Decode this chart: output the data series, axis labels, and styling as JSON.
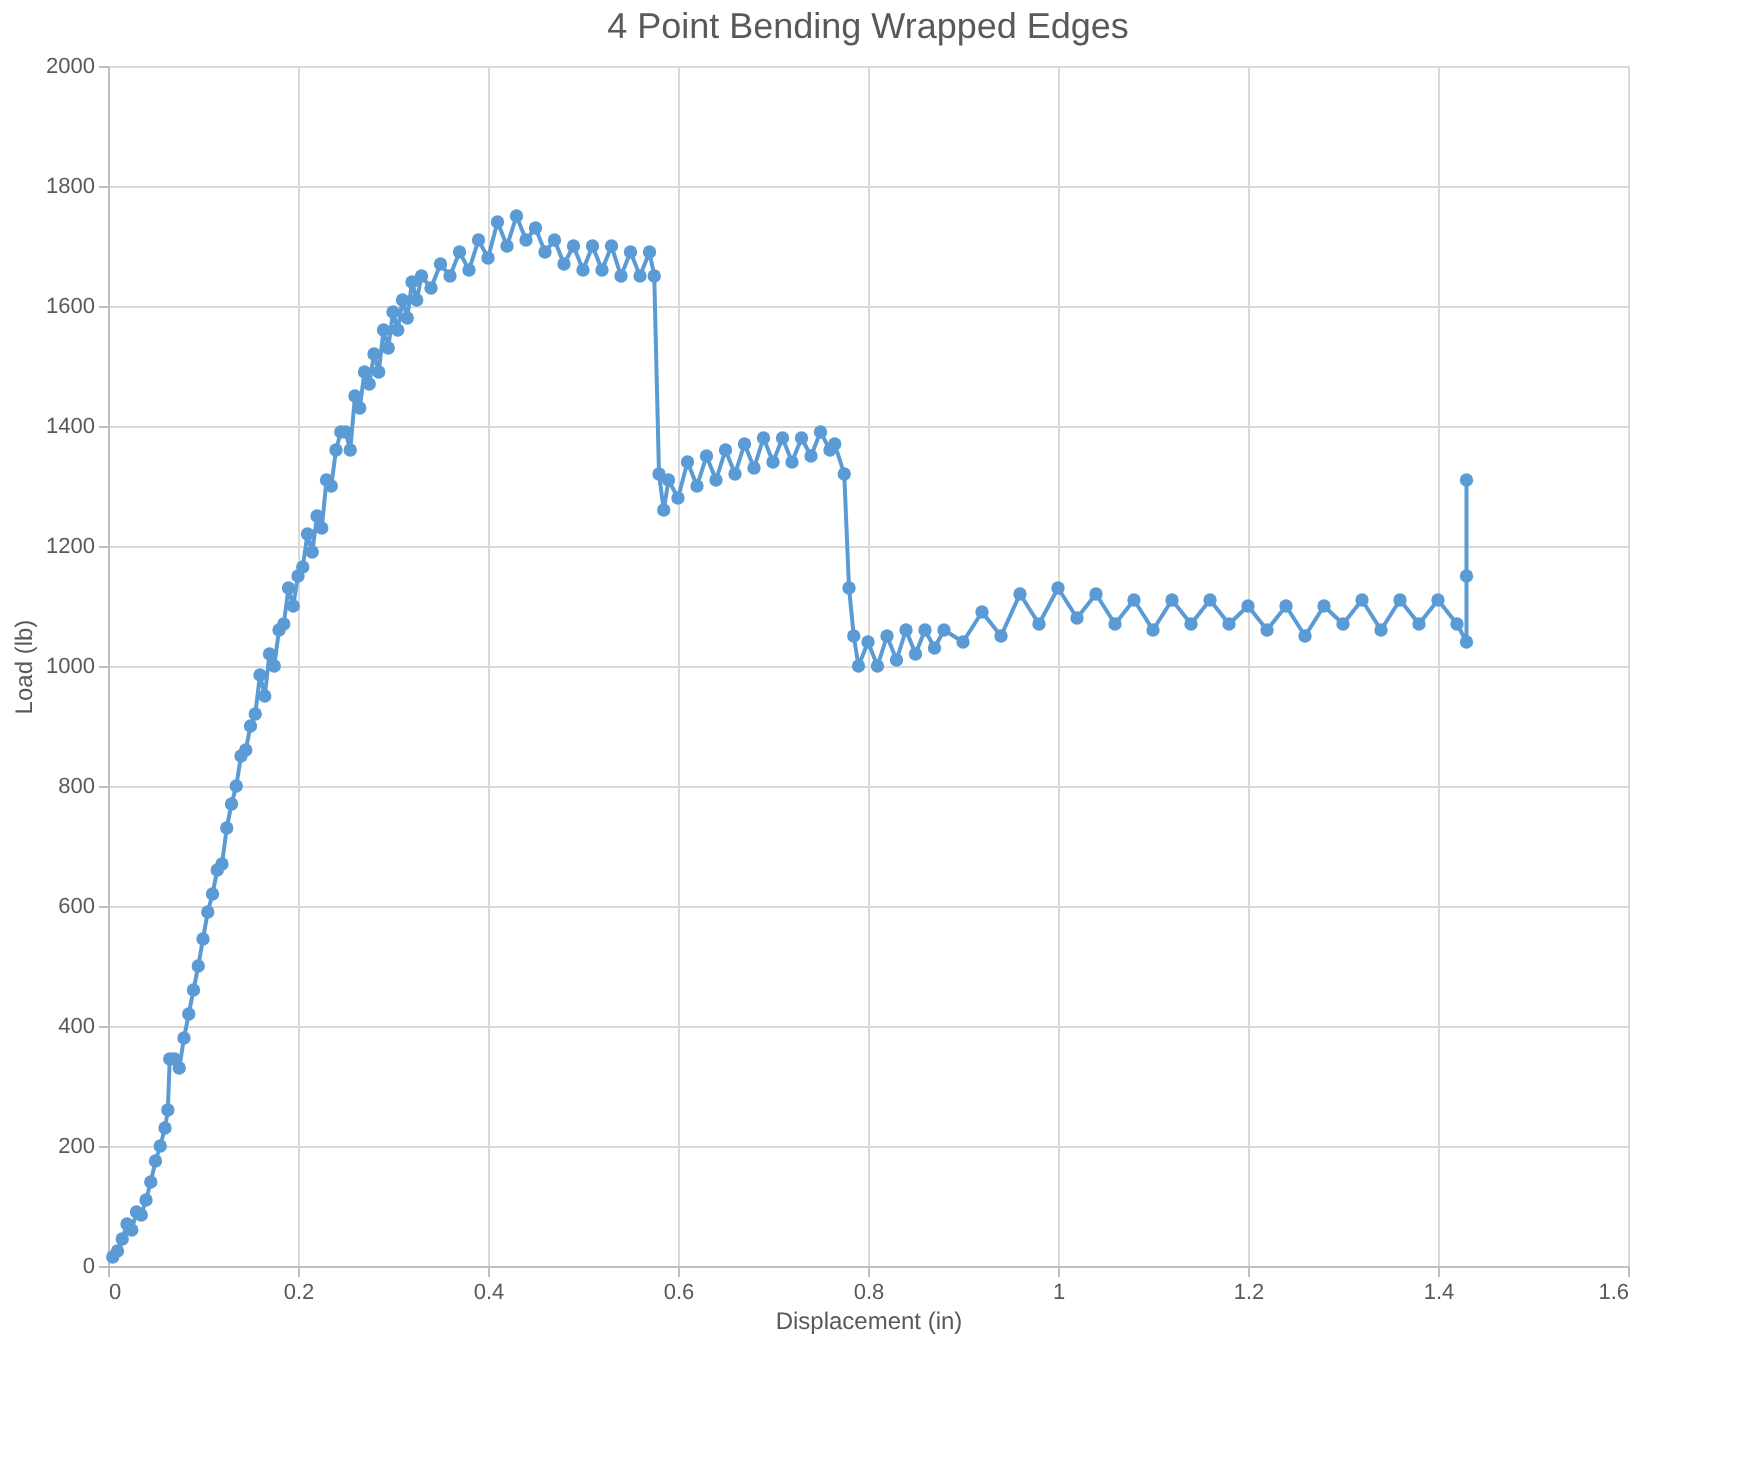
{
  "chart_data": {
    "type": "line",
    "title": "4 Point Bending Wrapped Edges",
    "xlabel": "Displacement (in)",
    "ylabel": "Load (lb)",
    "xlim": [
      0,
      1.6
    ],
    "xticks": [
      0,
      0.2,
      0.4,
      0.6,
      0.8,
      1,
      1.2,
      1.4,
      1.6
    ],
    "ylim": [
      0,
      2000
    ],
    "yticks": [
      0,
      200,
      400,
      600,
      800,
      1000,
      1200,
      1400,
      1600,
      1800,
      2000
    ],
    "grid": true,
    "legend": false,
    "marker": "circle",
    "line_style": "solid",
    "series": [
      {
        "color": "#5b9bd5",
        "x": [
          0.005,
          0.01,
          0.015,
          0.02,
          0.025,
          0.03,
          0.035,
          0.04,
          0.045,
          0.05,
          0.055,
          0.06,
          0.063,
          0.065,
          0.07,
          0.075,
          0.08,
          0.085,
          0.09,
          0.095,
          0.1,
          0.105,
          0.11,
          0.115,
          0.12,
          0.125,
          0.13,
          0.135,
          0.14,
          0.145,
          0.15,
          0.155,
          0.16,
          0.165,
          0.17,
          0.175,
          0.18,
          0.185,
          0.19,
          0.195,
          0.2,
          0.205,
          0.21,
          0.215,
          0.22,
          0.225,
          0.23,
          0.235,
          0.24,
          0.245,
          0.25,
          0.255,
          0.26,
          0.265,
          0.27,
          0.275,
          0.28,
          0.285,
          0.29,
          0.295,
          0.3,
          0.305,
          0.31,
          0.315,
          0.32,
          0.325,
          0.33,
          0.34,
          0.35,
          0.36,
          0.37,
          0.38,
          0.39,
          0.4,
          0.41,
          0.42,
          0.43,
          0.44,
          0.45,
          0.46,
          0.47,
          0.48,
          0.49,
          0.5,
          0.51,
          0.52,
          0.53,
          0.54,
          0.55,
          0.56,
          0.57,
          0.575,
          0.58,
          0.585,
          0.59,
          0.6,
          0.61,
          0.62,
          0.63,
          0.64,
          0.65,
          0.66,
          0.67,
          0.68,
          0.69,
          0.7,
          0.71,
          0.72,
          0.73,
          0.74,
          0.75,
          0.76,
          0.765,
          0.775,
          0.78,
          0.785,
          0.79,
          0.8,
          0.81,
          0.82,
          0.83,
          0.84,
          0.85,
          0.86,
          0.87,
          0.88,
          0.9,
          0.92,
          0.94,
          0.96,
          0.98,
          1.0,
          1.02,
          1.04,
          1.06,
          1.08,
          1.1,
          1.12,
          1.14,
          1.16,
          1.18,
          1.2,
          1.22,
          1.24,
          1.26,
          1.28,
          1.3,
          1.32,
          1.34,
          1.36,
          1.38,
          1.4,
          1.42,
          1.43,
          1.43,
          1.43
        ],
        "values": [
          15,
          25,
          45,
          70,
          60,
          90,
          85,
          110,
          140,
          175,
          200,
          230,
          260,
          345,
          345,
          330,
          380,
          420,
          460,
          500,
          545,
          590,
          620,
          660,
          670,
          730,
          770,
          800,
          850,
          860,
          900,
          920,
          985,
          950,
          1020,
          1000,
          1060,
          1070,
          1130,
          1100,
          1150,
          1165,
          1220,
          1190,
          1250,
          1230,
          1310,
          1300,
          1360,
          1390,
          1390,
          1360,
          1450,
          1430,
          1490,
          1470,
          1520,
          1490,
          1560,
          1530,
          1590,
          1560,
          1610,
          1580,
          1640,
          1610,
          1650,
          1630,
          1670,
          1650,
          1690,
          1660,
          1710,
          1680,
          1740,
          1700,
          1750,
          1710,
          1730,
          1690,
          1710,
          1670,
          1700,
          1660,
          1700,
          1660,
          1700,
          1650,
          1690,
          1650,
          1690,
          1650,
          1320,
          1260,
          1310,
          1280,
          1340,
          1300,
          1350,
          1310,
          1360,
          1320,
          1370,
          1330,
          1380,
          1340,
          1380,
          1340,
          1380,
          1350,
          1390,
          1360,
          1370,
          1320,
          1130,
          1050,
          1000,
          1040,
          1000,
          1050,
          1010,
          1060,
          1020,
          1060,
          1030,
          1060,
          1040,
          1090,
          1050,
          1120,
          1070,
          1130,
          1080,
          1120,
          1070,
          1110,
          1060,
          1110,
          1070,
          1110,
          1070,
          1100,
          1060,
          1100,
          1050,
          1100,
          1070,
          1110,
          1060,
          1110,
          1070,
          1110,
          1070,
          1040,
          1150,
          1310
        ]
      }
    ]
  }
}
